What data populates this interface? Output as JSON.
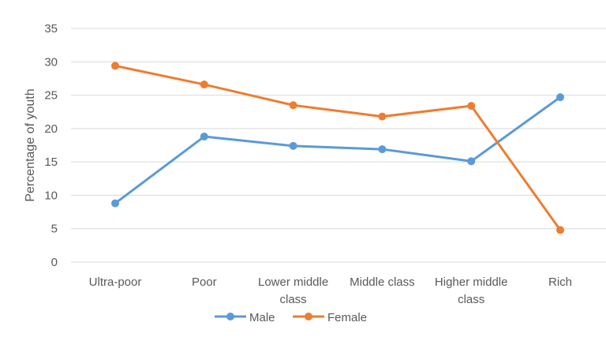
{
  "chart_data": {
    "type": "line",
    "title": "",
    "xlabel": "",
    "ylabel": "Percentage of youth",
    "ylim": [
      0,
      35
    ],
    "yticks": [
      0,
      5,
      10,
      15,
      20,
      25,
      30,
      35
    ],
    "grid": true,
    "legend_position": "bottom",
    "categories": [
      [
        "Ultra-poor"
      ],
      [
        "Poor"
      ],
      [
        "Lower middle",
        "class"
      ],
      [
        "Middle class"
      ],
      [
        "Higher middle",
        "class"
      ],
      [
        "Rich"
      ]
    ],
    "series": [
      {
        "name": "Male",
        "color": "#5B9BD5",
        "values": [
          8.8,
          18.8,
          17.4,
          16.9,
          15.1,
          24.7
        ]
      },
      {
        "name": "Female",
        "color": "#ED7D31",
        "values": [
          29.4,
          26.6,
          23.5,
          21.8,
          23.4,
          4.8
        ]
      }
    ]
  }
}
